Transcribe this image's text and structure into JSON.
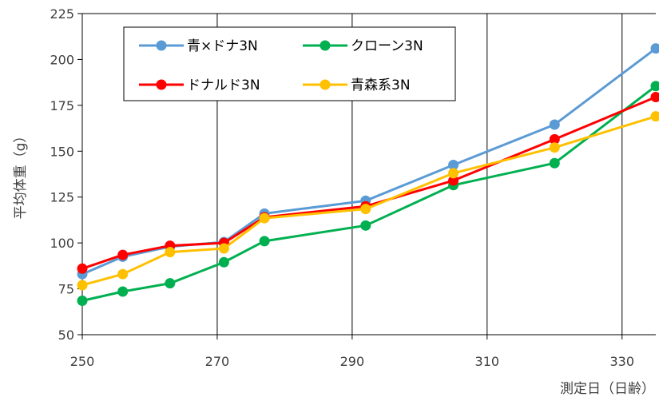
{
  "chart_data": {
    "type": "line",
    "title": "",
    "xlabel": "測定日（日齢）",
    "ylabel": "平均体重（g）",
    "xlim": [
      250,
      335
    ],
    "ylim": [
      50,
      225
    ],
    "xticks": [
      250,
      270,
      290,
      310,
      330
    ],
    "yticks": [
      50,
      75,
      100,
      125,
      150,
      175,
      200,
      225
    ],
    "x_tick_labels": [
      "250",
      "270",
      "290",
      "310",
      "330"
    ],
    "y_tick_labels": [
      "50",
      "75",
      "100",
      "125",
      "150",
      "175",
      "200",
      "225"
    ],
    "grid": "vertical",
    "legend_position": "top-left",
    "series": [
      {
        "name": "青×ドナ3N",
        "color": "#5B9BD5",
        "x": [
          250,
          256,
          263,
          271,
          277,
          292,
          305,
          320,
          335
        ],
        "values": [
          83,
          92.5,
          98,
          100.5,
          116,
          123,
          142.5,
          164.5,
          206
        ]
      },
      {
        "name": "クローン3N",
        "color": "#00B050",
        "x": [
          250,
          256,
          263,
          271,
          277,
          292,
          305,
          320,
          335
        ],
        "values": [
          68.5,
          73.5,
          78,
          89.5,
          101,
          109.5,
          131.5,
          143.5,
          185.5
        ]
      },
      {
        "name": "ドナルド3N",
        "color": "#FF0000",
        "x": [
          250,
          256,
          263,
          271,
          277,
          292,
          305,
          320,
          335
        ],
        "values": [
          86,
          93.5,
          98.5,
          100,
          114,
          120,
          134,
          156.5,
          179.5
        ]
      },
      {
        "name": "青森系3N",
        "color": "#FFC000",
        "x": [
          250,
          256,
          263,
          271,
          277,
          292,
          305,
          320,
          335
        ],
        "values": [
          77,
          83,
          95,
          97,
          113.5,
          118.5,
          138,
          152,
          169
        ]
      }
    ]
  }
}
